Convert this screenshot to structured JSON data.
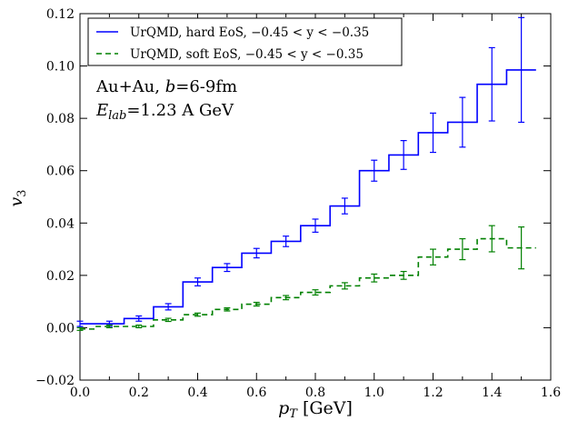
{
  "chart_data": {
    "type": "line",
    "title": "",
    "xlabel": "p_T [GeV]",
    "ylabel": "v_3",
    "xlim": [
      0.0,
      1.6
    ],
    "ylim": [
      -0.02,
      0.12
    ],
    "x_ticks": [
      "0.0",
      "0.2",
      "0.4",
      "0.6",
      "0.8",
      "1.0",
      "1.2",
      "1.4",
      "1.6"
    ],
    "y_ticks": [
      "−0.02",
      "0.00",
      "0.02",
      "0.04",
      "0.06",
      "0.08",
      "0.10",
      "0.12"
    ],
    "grid": false,
    "legend_position": "top-left",
    "annotations": {
      "line1": "Au+Au, b=6-9fm",
      "line2": "E_lab=1.23 A GeV"
    },
    "series": [
      {
        "name": "UrQMD, hard EoS, −0.45 < y < −0.35",
        "color": "#0000ff",
        "style": "solid-step",
        "x": [
          0.0,
          0.1,
          0.2,
          0.3,
          0.4,
          0.5,
          0.6,
          0.7,
          0.8,
          0.9,
          1.0,
          1.1,
          1.2,
          1.3,
          1.4,
          1.5
        ],
        "y": [
          0.0015,
          0.0015,
          0.0035,
          0.008,
          0.0175,
          0.023,
          0.0285,
          0.033,
          0.039,
          0.0465,
          0.06,
          0.066,
          0.0745,
          0.0785,
          0.093,
          0.0985
        ],
        "err": [
          0.001,
          0.001,
          0.001,
          0.0012,
          0.0015,
          0.0015,
          0.0018,
          0.002,
          0.0025,
          0.003,
          0.004,
          0.0055,
          0.0075,
          0.0095,
          0.014,
          0.02
        ]
      },
      {
        "name": "UrQMD, soft EoS, −0.45 < y < −0.35",
        "color": "#008000",
        "style": "dashed-step",
        "x": [
          0.0,
          0.1,
          0.2,
          0.3,
          0.4,
          0.5,
          0.6,
          0.7,
          0.8,
          0.9,
          1.0,
          1.1,
          1.2,
          1.3,
          1.4,
          1.5
        ],
        "y": [
          -0.0005,
          0.0005,
          0.0005,
          0.003,
          0.005,
          0.007,
          0.009,
          0.0115,
          0.0135,
          0.016,
          0.019,
          0.02,
          0.027,
          0.03,
          0.034,
          0.0305
        ],
        "err": [
          0.0005,
          0.0005,
          0.0005,
          0.0006,
          0.0006,
          0.0006,
          0.0007,
          0.0008,
          0.001,
          0.0012,
          0.0015,
          0.0015,
          0.003,
          0.004,
          0.005,
          0.008
        ]
      }
    ]
  }
}
